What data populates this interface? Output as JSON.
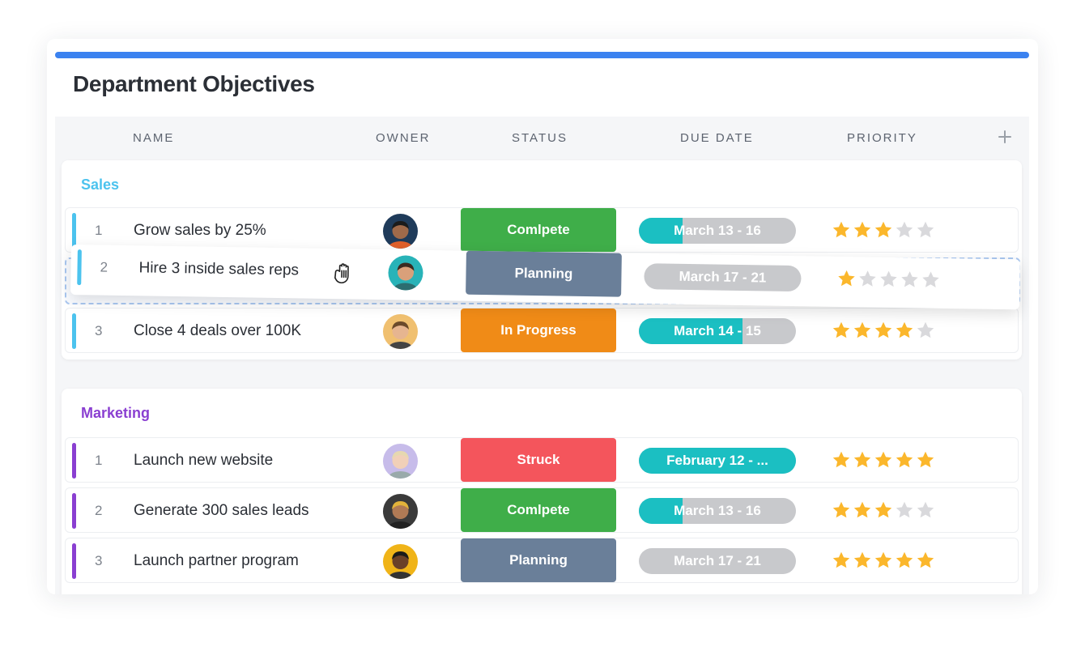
{
  "title": "Department Objectives",
  "columns": [
    "NAME",
    "OWNER",
    "STATUS",
    "DUE DATE",
    "PRIORITY"
  ],
  "add_column_icon": "plus-icon",
  "colors": {
    "accent_blue": "#3b82f0",
    "sales": "#4cc3ee",
    "marketing": "#8a3fd1",
    "complete": "#3fae49",
    "planning": "#6a7f99",
    "in_progress": "#f08b17",
    "struck": "#f4555c",
    "due_fill": "#1bbfc2",
    "due_bg": "#c8c9cc",
    "star_on": "#fbb72c",
    "star_off": "#d9d9dc"
  },
  "groups": [
    {
      "name": "Sales",
      "rows": [
        {
          "num": "1",
          "name": "Grow sales by 25%",
          "owner": "avatar",
          "status": "Comlpete",
          "due": "March 13 - 16",
          "due_progress": 0.28,
          "priority": 3
        },
        {
          "num": "2",
          "name": "Hire 3 inside sales reps",
          "owner": "avatar",
          "status": "Planning",
          "due": "March 17 - 21",
          "due_progress": 0,
          "priority": 1,
          "dragging": true
        },
        {
          "num": "3",
          "name": "Close 4 deals over 100K",
          "owner": "avatar",
          "status": "In Progress",
          "due": "March 14 - 15",
          "due_progress": 0.66,
          "priority": 4
        }
      ]
    },
    {
      "name": "Marketing",
      "rows": [
        {
          "num": "1",
          "name": "Launch new website",
          "owner": "avatar",
          "status": "Struck",
          "due": "February 12 - ...",
          "due_progress": 1,
          "priority": 5
        },
        {
          "num": "2",
          "name": "Generate 300 sales leads",
          "owner": "avatar",
          "status": "Comlpete",
          "due": "March 13 - 16",
          "due_progress": 0.28,
          "priority": 3
        },
        {
          "num": "3",
          "name": "Launch partner program",
          "owner": "avatar",
          "status": "Planning",
          "due": "March 17 - 21",
          "due_progress": 0,
          "priority": 5
        }
      ]
    }
  ]
}
